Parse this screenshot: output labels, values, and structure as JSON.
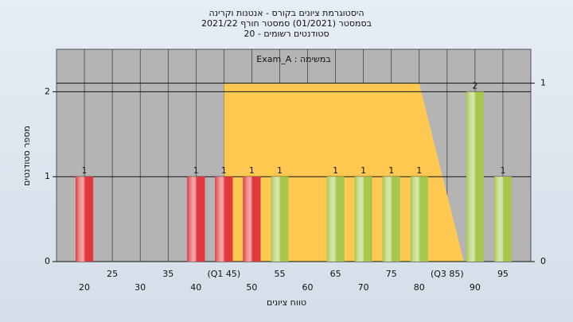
{
  "chart_data": {
    "type": "bar",
    "title_lines": [
      "היסטוגרמת ציונים בקורס - אנטנות וקרינה",
      "בסמסטר (01/2021) סמסטר חורף 2021/22",
      "סטודנטים רשומים - 20"
    ],
    "annotation": "במשימה : Exam_A",
    "y_label": "מספר סטודנטים",
    "x_label": "טווח ציונים",
    "categories": [
      "20",
      "25",
      "30",
      "35",
      "40",
      "(Q1 45)",
      "50",
      "55",
      "60",
      "65",
      "70",
      "75",
      "80",
      "(Q3 85)",
      "90",
      "95"
    ],
    "values": [
      1,
      0,
      0,
      0,
      1,
      1,
      1,
      1,
      0,
      1,
      1,
      1,
      1,
      0,
      2,
      1
    ],
    "colors": [
      "#e0383c",
      "#e0383c",
      "#e0383c",
      "#e0383c",
      "#e0383c",
      "#e0383c",
      "#e0383c",
      "#a6c64c",
      "#a6c64c",
      "#a6c64c",
      "#a6c64c",
      "#a6c64c",
      "#a6c64c",
      "#a6c64c",
      "#a6c64c",
      "#a6c64c"
    ],
    "xlim": [
      15,
      100
    ],
    "ylim": [
      0,
      2.5
    ],
    "yticks": [
      0,
      1,
      2
    ],
    "y2lim": [
      0,
      1.19
    ],
    "y2ticks": [
      0,
      1
    ],
    "area": {
      "axis": "y2",
      "x": [
        45,
        45,
        80,
        88
      ],
      "values": [
        0,
        1,
        1,
        0
      ],
      "color": "#ffc851"
    },
    "grid": true
  }
}
